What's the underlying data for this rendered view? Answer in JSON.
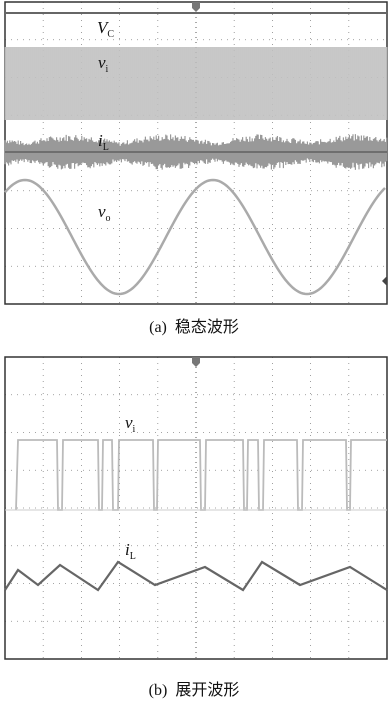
{
  "panels": [
    {
      "labels": [
        {
          "symbol": "V",
          "subscript": "C"
        },
        {
          "symbol": "v",
          "subscript": "i"
        },
        {
          "symbol": "i",
          "subscript": "L"
        },
        {
          "symbol": "v",
          "subscript": "o"
        }
      ],
      "caption": {
        "tag": "(a)",
        "text": "稳态波形"
      }
    },
    {
      "labels": [
        {
          "symbol": "v",
          "subscript": "i"
        },
        {
          "symbol": "i",
          "subscript": "L"
        }
      ],
      "caption": {
        "tag": "(b)",
        "text": "展开波形"
      }
    }
  ]
}
